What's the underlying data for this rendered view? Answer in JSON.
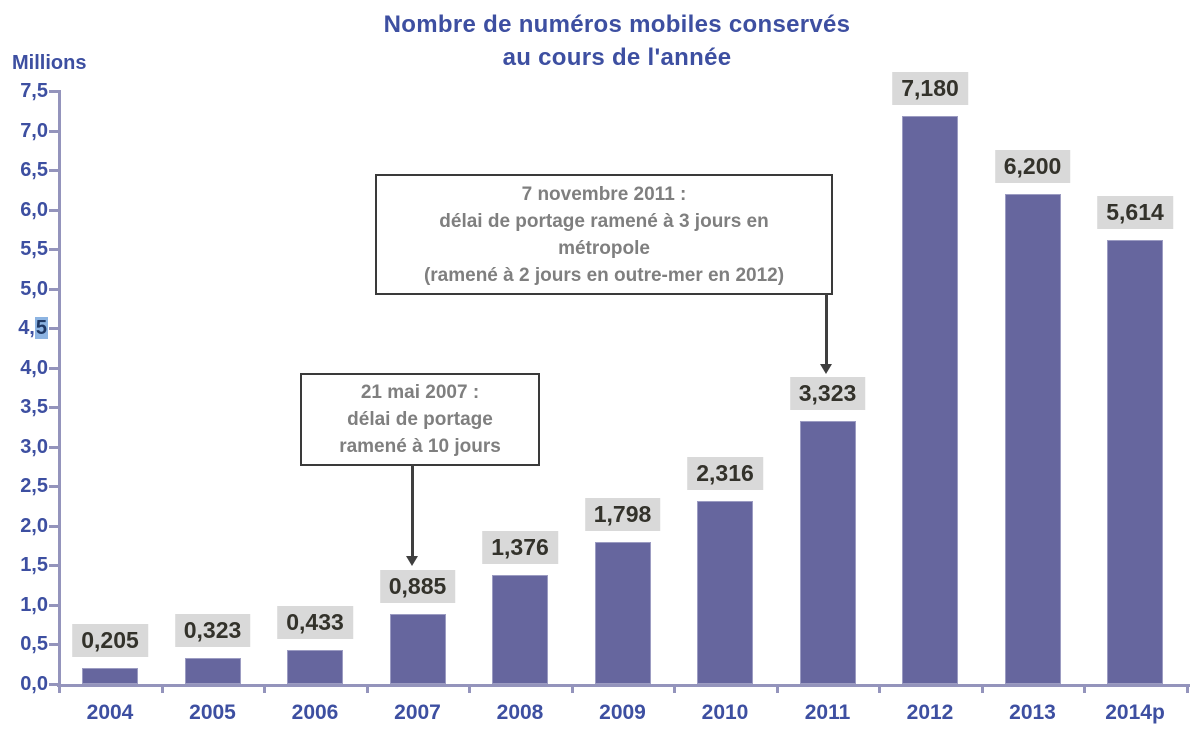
{
  "title": {
    "line1": "Nombre de numéros mobiles conservés",
    "line2": "au cours de l'année"
  },
  "y_axis_unit": "Millions",
  "chart_data": {
    "type": "bar",
    "title": "Nombre de numéros mobiles conservés au cours de l'année",
    "xlabel": "",
    "ylabel": "Millions",
    "categories": [
      "2004",
      "2005",
      "2006",
      "2007",
      "2008",
      "2009",
      "2010",
      "2011",
      "2012",
      "2013",
      "2014p"
    ],
    "values": [
      0.205,
      0.323,
      0.433,
      0.885,
      1.376,
      1.798,
      2.316,
      3.323,
      7.18,
      6.2,
      5.614
    ],
    "value_labels": [
      "0,205",
      "0,323",
      "0,433",
      "0,885",
      "1,376",
      "1,798",
      "2,316",
      "3,323",
      "7,180",
      "6,200",
      "5,614"
    ],
    "ylim": [
      0,
      7.5
    ],
    "ytick_step": 0.5,
    "ytick_labels": [
      "0,0",
      "0,5",
      "1,0",
      "1,5",
      "2,0",
      "2,5",
      "3,0",
      "3,5",
      "4,0",
      "4,5",
      "5,0",
      "5,5",
      "6,0",
      "6,5",
      "7,0",
      "7,5"
    ],
    "highlighted_tick": {
      "label": "4,5",
      "prefix": "4,",
      "highlighted_char": "5"
    },
    "grid": false,
    "legend": null,
    "bar_color": "#66669E",
    "value_label_bg": "#D9D9D9",
    "axis_color": "#9494BC",
    "text_color": "#3D4FA1"
  },
  "annotations": [
    {
      "id": "2007",
      "text": "21 mai 2007 :\ndélai de portage\nramené à 10 jours",
      "target_category": "2007",
      "target_value_label": "0,885"
    },
    {
      "id": "2011",
      "text": "7 novembre 2011 :\ndélai de portage ramené à 3 jours en\nmétropole\n(ramené à 2 jours en outre-mer en 2012)",
      "target_category": "2011",
      "target_value_label": "3,323"
    }
  ]
}
